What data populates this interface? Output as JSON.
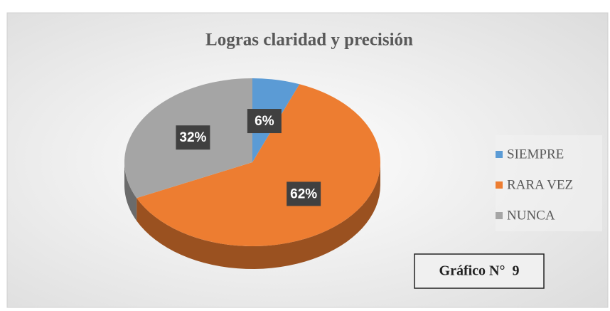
{
  "chart_data": {
    "type": "pie",
    "title": "Logras claridad y precisión",
    "categories": [
      "SIEMPRE",
      "RARA VEZ",
      "NUNCA"
    ],
    "values": [
      6,
      62,
      32
    ],
    "value_labels": [
      "6%",
      "62%",
      "32%"
    ],
    "colors": [
      "#5b9bd5",
      "#ed7d31",
      "#a5a5a5"
    ],
    "legend": "right",
    "annotation": "Gráfico N°  9"
  }
}
